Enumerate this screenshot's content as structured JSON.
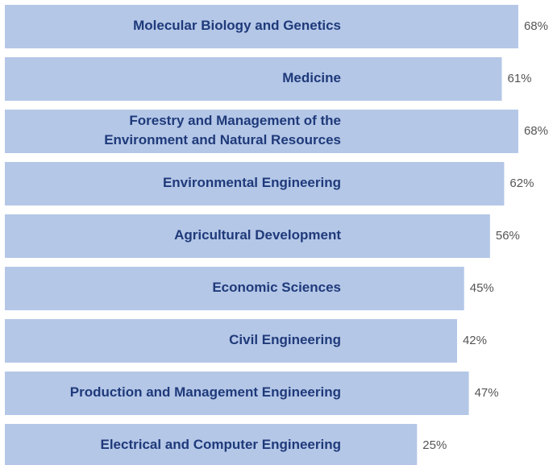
{
  "chart_data": {
    "type": "bar",
    "orientation": "horizontal",
    "categories": [
      "Molecular Biology and Genetics",
      "Medicine",
      "Forestry and Management of the\nEnvironment and Natural Resources",
      "Environmental Engineering",
      "Agricultural Development",
      "Economic Sciences",
      "Civil Engineering",
      "Production and Management Engineering",
      "Electrical and Computer Engineering"
    ],
    "values": [
      68,
      61,
      68,
      62,
      56,
      45,
      42,
      47,
      25
    ],
    "value_labels": [
      "68%",
      "61%",
      "68%",
      "62%",
      "56%",
      "45%",
      "42%",
      "47%",
      "25%"
    ],
    "color": "#b4c7e7",
    "xlim": [
      -150,
      80
    ]
  }
}
